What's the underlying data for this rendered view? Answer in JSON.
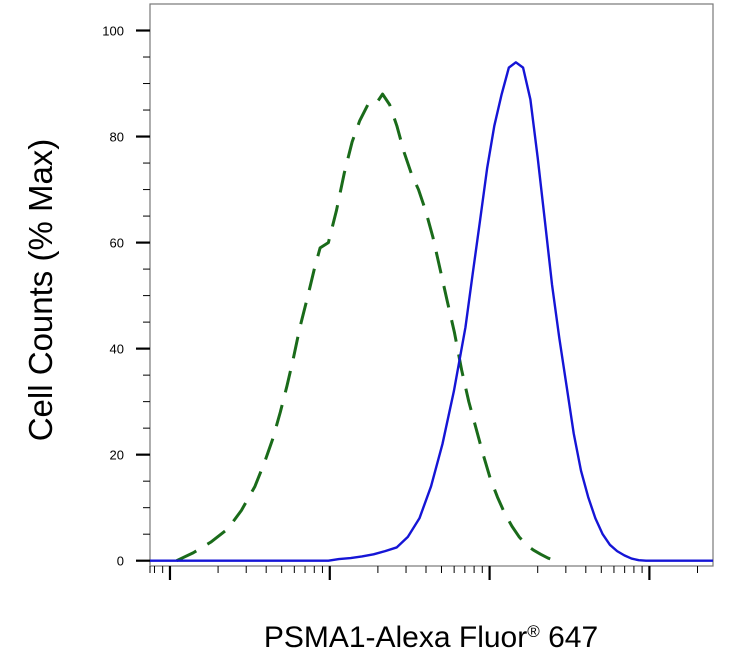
{
  "chart_data": {
    "type": "line",
    "title": "",
    "xlabel_main": "PSMA1-Alexa Fluor",
    "xlabel_sup": "®",
    "xlabel_tail": " 647",
    "ylabel": "Cell Counts (% Max)",
    "xscale": "log",
    "x_decades": [
      1,
      10,
      100,
      1000
    ],
    "xlim": [
      0.75,
      2500
    ],
    "ylim": [
      -1,
      105
    ],
    "yticks": [
      0,
      20,
      40,
      60,
      80,
      100
    ],
    "ytick_labels": [
      "0",
      "20",
      "40",
      "60",
      "80",
      "100"
    ],
    "grid": false,
    "legend": "none",
    "series": [
      {
        "color": "#1a6b1a",
        "style": "dashed",
        "points": [
          [
            1.1,
            0
          ],
          [
            1.4,
            1.5
          ],
          [
            1.8,
            3.5
          ],
          [
            2.3,
            6
          ],
          [
            2.8,
            9.5
          ],
          [
            3.4,
            14
          ],
          [
            3.9,
            18.5
          ],
          [
            4.4,
            23
          ],
          [
            4.9,
            28
          ],
          [
            5.4,
            33
          ],
          [
            5.9,
            38
          ],
          [
            6.5,
            44
          ],
          [
            7.3,
            50
          ],
          [
            8.0,
            55
          ],
          [
            8.7,
            59
          ],
          [
            9.8,
            60
          ],
          [
            11.0,
            66
          ],
          [
            12.3,
            73
          ],
          [
            13.8,
            79
          ],
          [
            15.4,
            83
          ],
          [
            17.3,
            86
          ],
          [
            19.3,
            86
          ],
          [
            21.4,
            88
          ],
          [
            23.7,
            86
          ],
          [
            26.3,
            82
          ],
          [
            29.2,
            77
          ],
          [
            32.4,
            73
          ],
          [
            35.9,
            70
          ],
          [
            39.8,
            66
          ],
          [
            44.2,
            61
          ],
          [
            49.0,
            55
          ],
          [
            54.3,
            49
          ],
          [
            60.3,
            43
          ],
          [
            66.8,
            36
          ],
          [
            74.1,
            30
          ],
          [
            82.2,
            25
          ],
          [
            91.2,
            20
          ],
          [
            101,
            15.5
          ],
          [
            112,
            12
          ],
          [
            124,
            9
          ],
          [
            138,
            6.5
          ],
          [
            153,
            4.5
          ],
          [
            170,
            3
          ],
          [
            188,
            2
          ],
          [
            209,
            1.2
          ],
          [
            232,
            0.5
          ],
          [
            257,
            0
          ]
        ]
      },
      {
        "color": "#1515d6",
        "style": "solid",
        "points": [
          [
            0.75,
            0
          ],
          [
            9.8,
            0
          ],
          [
            11.4,
            0.3
          ],
          [
            13.5,
            0.5
          ],
          [
            15.9,
            0.8
          ],
          [
            18.8,
            1.2
          ],
          [
            22.2,
            1.8
          ],
          [
            26.2,
            2.5
          ],
          [
            30.8,
            4.5
          ],
          [
            36.4,
            8
          ],
          [
            43.0,
            14
          ],
          [
            50.7,
            22
          ],
          [
            59.8,
            32
          ],
          [
            70.6,
            44
          ],
          [
            78.3,
            54
          ],
          [
            87.0,
            64
          ],
          [
            96.5,
            74
          ],
          [
            107,
            82
          ],
          [
            119,
            88
          ],
          [
            132,
            93
          ],
          [
            146,
            94
          ],
          [
            162,
            93
          ],
          [
            180,
            87
          ],
          [
            200,
            76
          ],
          [
            222,
            64
          ],
          [
            246,
            52
          ],
          [
            273,
            42
          ],
          [
            303,
            33
          ],
          [
            336,
            24
          ],
          [
            373,
            17
          ],
          [
            414,
            12
          ],
          [
            459,
            8
          ],
          [
            510,
            5
          ],
          [
            566,
            3
          ],
          [
            628,
            1.8
          ],
          [
            697,
            1
          ],
          [
            773,
            0.4
          ],
          [
            858,
            0.1
          ],
          [
            952,
            0
          ],
          [
            2500,
            0
          ]
        ]
      }
    ]
  }
}
